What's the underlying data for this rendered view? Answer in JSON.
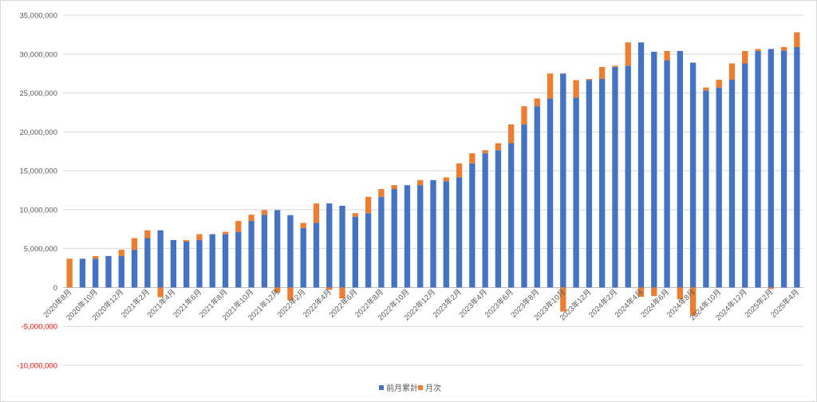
{
  "chart_data": {
    "type": "bar",
    "stacked": true,
    "title": "",
    "xlabel": "",
    "ylabel": "",
    "ylim": [
      -10000000,
      35000000
    ],
    "ytick_step": 5000000,
    "yticks": [
      "-10,000,000",
      "-5,000,000",
      "0",
      "5,000,000",
      "10,000,000",
      "15,000,000",
      "20,000,000",
      "25,000,000",
      "30,000,000",
      "35,000,000"
    ],
    "grid": true,
    "legend_position": "bottom",
    "categories": [
      "2020年8月",
      "2020年9月",
      "2020年10月",
      "2020年11月",
      "2020年12月",
      "2021年1月",
      "2021年2月",
      "2021年3月",
      "2021年4月",
      "2021年5月",
      "2021年6月",
      "2021年7月",
      "2021年8月",
      "2021年9月",
      "2021年10月",
      "2021年11月",
      "2021年12月",
      "2022年1月",
      "2022年2月",
      "2022年3月",
      "2022年4月",
      "2022年5月",
      "2022年6月",
      "2022年7月",
      "2022年8月",
      "2022年9月",
      "2022年10月",
      "2022年11月",
      "2022年12月",
      "2023年1月",
      "2023年2月",
      "2023年3月",
      "2023年4月",
      "2023年5月",
      "2023年6月",
      "2023年7月",
      "2023年8月",
      "2023年9月",
      "2023年10月",
      "2023年11月",
      "2023年12月",
      "2024年1月",
      "2024年2月",
      "2024年3月",
      "2024年4月",
      "2024年5月",
      "2024年6月",
      "2024年7月",
      "2024年8月",
      "2024年9月",
      "2024年10月",
      "2024年11月",
      "2024年12月",
      "2025年1月",
      "2025年2月",
      "2025年3月",
      "2025年4月"
    ],
    "visible_tick_labels": [
      "2020年8月",
      "2020年10月",
      "2020年12月",
      "2021年2月",
      "2021年4月",
      "2021年6月",
      "2021年8月",
      "2021年10月",
      "2021年12月",
      "2022年2月",
      "2022年4月",
      "2022年6月",
      "2022年8月",
      "2022年10月",
      "2022年12月",
      "2023年2月",
      "2023年4月",
      "2023年6月",
      "2023年8月",
      "2023年10月",
      "2023年12月",
      "2024年2月",
      "2024年4月",
      "2024年6月",
      "2024年8月",
      "2024年10月",
      "2024年12月",
      "2025年2月",
      "2025年4月"
    ],
    "series": [
      {
        "name": "前月累計",
        "color": "#4472c4",
        "values": [
          0,
          3700000,
          3700000,
          4050000,
          4050000,
          4850000,
          6350000,
          7350000,
          6100000,
          5900000,
          6100000,
          6850000,
          6850000,
          7150000,
          8550000,
          9350000,
          9950000,
          9300000,
          7650000,
          8300000,
          10800000,
          10500000,
          9100000,
          9550000,
          11650000,
          12650000,
          13150000,
          13150000,
          13800000,
          13650000,
          14150000,
          15950000,
          17250000,
          17650000,
          18550000,
          20950000,
          23300000,
          24300000,
          27500000,
          24400000,
          26650000,
          26800000,
          28350000,
          28500000,
          31500000,
          30300000,
          29200000,
          30400000,
          28900000,
          25300000,
          25700000,
          26700000,
          28800000,
          30400000,
          30650000,
          30450000,
          30900000
        ]
      },
      {
        "name": "月次",
        "color": "#ed7d31",
        "values": [
          3700000,
          0,
          350000,
          0,
          800000,
          1500000,
          1000000,
          -1250000,
          0,
          200000,
          750000,
          0,
          300000,
          1400000,
          800000,
          600000,
          -650000,
          -1650000,
          650000,
          2500000,
          -300000,
          -1400000,
          450000,
          2100000,
          1000000,
          500000,
          0,
          650000,
          0,
          500000,
          1800000,
          1300000,
          400000,
          900000,
          2400000,
          2350000,
          1000000,
          3200000,
          -3100000,
          2250000,
          150000,
          1550000,
          150000,
          3000000,
          -1200000,
          -1100000,
          1200000,
          -1500000,
          -3600000,
          400000,
          1000000,
          2100000,
          1600000,
          250000,
          -200000,
          450000,
          1900000
        ]
      }
    ]
  }
}
